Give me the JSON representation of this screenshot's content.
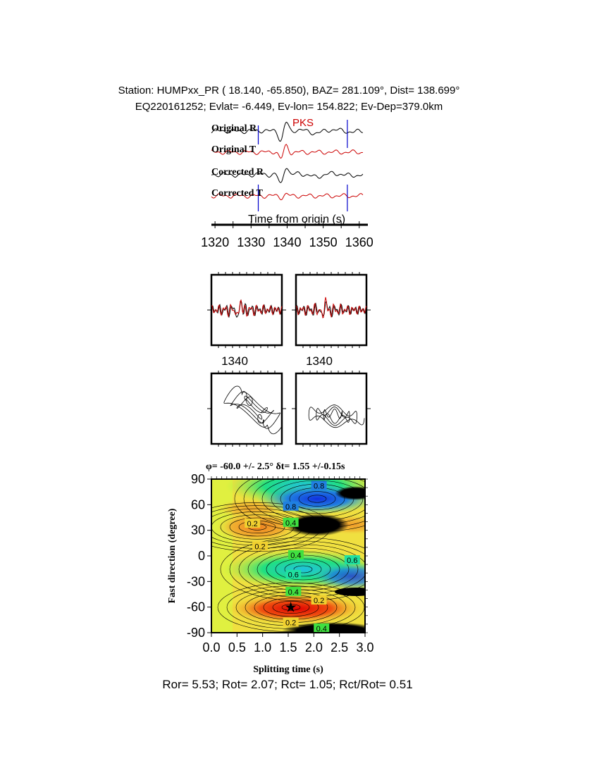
{
  "header": {
    "line1": "Station: HUMPxx_PR (  18.140,  -65.850), BAZ=  281.109°, Dist=  138.699°",
    "line2": "EQ220161252; Evlat=  -6.449, Ev-lon= 154.822; Ev-Dep=379.0km"
  },
  "chart_data": [
    {
      "type": "line",
      "panel": "seismograms",
      "phase_label": "PKS",
      "traces": [
        "Original R",
        "Original T",
        "Corrected R",
        "Corrected T"
      ],
      "trace_colors": {
        "R": "#000000",
        "T": "#cc0000"
      },
      "xlabel": "Time from origin (s)",
      "xlim": [
        1319,
        1362
      ],
      "xticks": [
        "1320",
        "1330",
        "1340",
        "1350",
        "1360"
      ],
      "window_markers_s": [
        1332,
        1356.7
      ],
      "marker_color": "#0000cc"
    },
    {
      "type": "line",
      "panel": "waveform-comparison",
      "tick_labels": [
        "1340",
        "1340"
      ]
    },
    {
      "type": "line",
      "panel": "particle-motion"
    },
    {
      "type": "heatmap",
      "panel": "grid-search",
      "title": "φ= -60.0 +/- 2.5° δt= 1.55 +/-0.15s",
      "xlabel": "Splitting time (s)",
      "ylabel": "Fast direction (degree)",
      "xlim": [
        0,
        3
      ],
      "ylim": [
        -90,
        90
      ],
      "xticks": [
        "0.0",
        "0.5",
        "1.0",
        "1.5",
        "2.0",
        "2.5",
        "3.0"
      ],
      "yticks": [
        "90",
        "60",
        "30",
        "0",
        "-30",
        "-60",
        "-90"
      ],
      "best": {
        "dt": 1.55,
        "phi": -60.0
      },
      "contour_labels": [
        {
          "text": "0.8",
          "dt": 2.1,
          "phi": 82
        },
        {
          "text": "0.8",
          "dt": 1.55,
          "phi": 58
        },
        {
          "text": "0.4",
          "dt": 1.55,
          "phi": 39
        },
        {
          "text": "0.2",
          "dt": 0.8,
          "phi": 38
        },
        {
          "text": "0.2",
          "dt": 0.95,
          "phi": 11
        },
        {
          "text": "0.4",
          "dt": 1.65,
          "phi": 1
        },
        {
          "text": "0.6",
          "dt": 2.75,
          "phi": -5
        },
        {
          "text": "0.6",
          "dt": 1.6,
          "phi": -22
        },
        {
          "text": "0.4",
          "dt": 1.6,
          "phi": -42
        },
        {
          "text": "0.2",
          "dt": 2.1,
          "phi": -52
        },
        {
          "text": "0.2",
          "dt": 1.55,
          "phi": -78
        },
        {
          "text": "0.4",
          "dt": 2.15,
          "phi": -85
        }
      ]
    }
  ],
  "footer": "Ror= 5.53; Rot= 2.07; Rct= 1.05; Rct/Rot= 0.51"
}
